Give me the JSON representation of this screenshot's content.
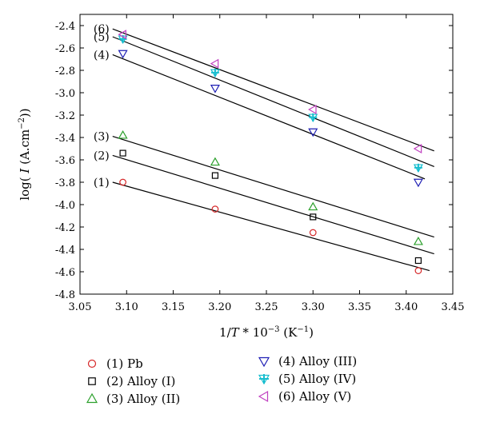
{
  "chart_data": {
    "type": "scatter",
    "xlabel": "1/T * 10^-3 (K^-1)",
    "ylabel": "log( I (A.cm^-2))",
    "xlim": [
      3.05,
      3.45
    ],
    "ylim": [
      -4.8,
      -2.3
    ],
    "xticks": [
      "3.05",
      "3.10",
      "3.15",
      "3.20",
      "3.25",
      "3.30",
      "3.35",
      "3.40",
      "3.45"
    ],
    "yticks": [
      "-2.4",
      "-2.6",
      "-2.8",
      "-3.0",
      "-3.2",
      "-3.4",
      "-3.6",
      "-3.8",
      "-4.0",
      "-4.2",
      "-4.4",
      "-4.6",
      "-4.8"
    ],
    "legend_position": "bottom",
    "series": [
      {
        "name": "(1) Pb",
        "tag": "(1)",
        "marker": "circle",
        "color": "#d62728",
        "points": [
          [
            3.096,
            -3.8
          ],
          [
            3.195,
            -4.04
          ],
          [
            3.3,
            -4.25
          ],
          [
            3.413,
            -4.59
          ]
        ],
        "fit": [
          [
            3.085,
            -3.8
          ],
          [
            3.425,
            -4.59
          ]
        ]
      },
      {
        "name": "(2) Alloy (I)",
        "tag": "(2)",
        "marker": "square",
        "color": "#000000",
        "points": [
          [
            3.096,
            -3.54
          ],
          [
            3.195,
            -3.74
          ],
          [
            3.3,
            -4.11
          ],
          [
            3.413,
            -4.5
          ]
        ],
        "fit": [
          [
            3.085,
            -3.56
          ],
          [
            3.43,
            -4.44
          ]
        ]
      },
      {
        "name": "(3) Alloy (II)",
        "tag": "(3)",
        "marker": "triangle-up",
        "color": "#2ca02c",
        "points": [
          [
            3.096,
            -3.38
          ],
          [
            3.195,
            -3.62
          ],
          [
            3.3,
            -4.02
          ],
          [
            3.413,
            -4.33
          ]
        ],
        "fit": [
          [
            3.085,
            -3.39
          ],
          [
            3.43,
            -4.29
          ]
        ]
      },
      {
        "name": "(4) Alloy (III)",
        "tag": "(4)",
        "marker": "triangle-down",
        "color": "#1f1fb4",
        "points": [
          [
            3.096,
            -2.65
          ],
          [
            3.195,
            -2.96
          ],
          [
            3.3,
            -3.35
          ],
          [
            3.413,
            -3.8
          ]
        ],
        "fit": [
          [
            3.085,
            -2.66
          ],
          [
            3.42,
            -3.77
          ]
        ]
      },
      {
        "name": "(5) Alloy (IV)",
        "tag": "(5)",
        "marker": "asterisk-down",
        "color": "#17becf",
        "points": [
          [
            3.096,
            -2.52
          ],
          [
            3.195,
            -2.82
          ],
          [
            3.3,
            -3.22
          ],
          [
            3.413,
            -3.67
          ]
        ],
        "fit": [
          [
            3.085,
            -2.5
          ],
          [
            3.43,
            -3.66
          ]
        ]
      },
      {
        "name": "(6) Alloy (V)",
        "tag": "(6)",
        "marker": "triangle-left",
        "color": "#c040c0",
        "points": [
          [
            3.096,
            -2.48
          ],
          [
            3.195,
            -2.74
          ],
          [
            3.3,
            -3.15
          ],
          [
            3.413,
            -3.5
          ]
        ],
        "fit": [
          [
            3.085,
            -2.43
          ],
          [
            3.43,
            -3.52
          ]
        ]
      }
    ]
  }
}
